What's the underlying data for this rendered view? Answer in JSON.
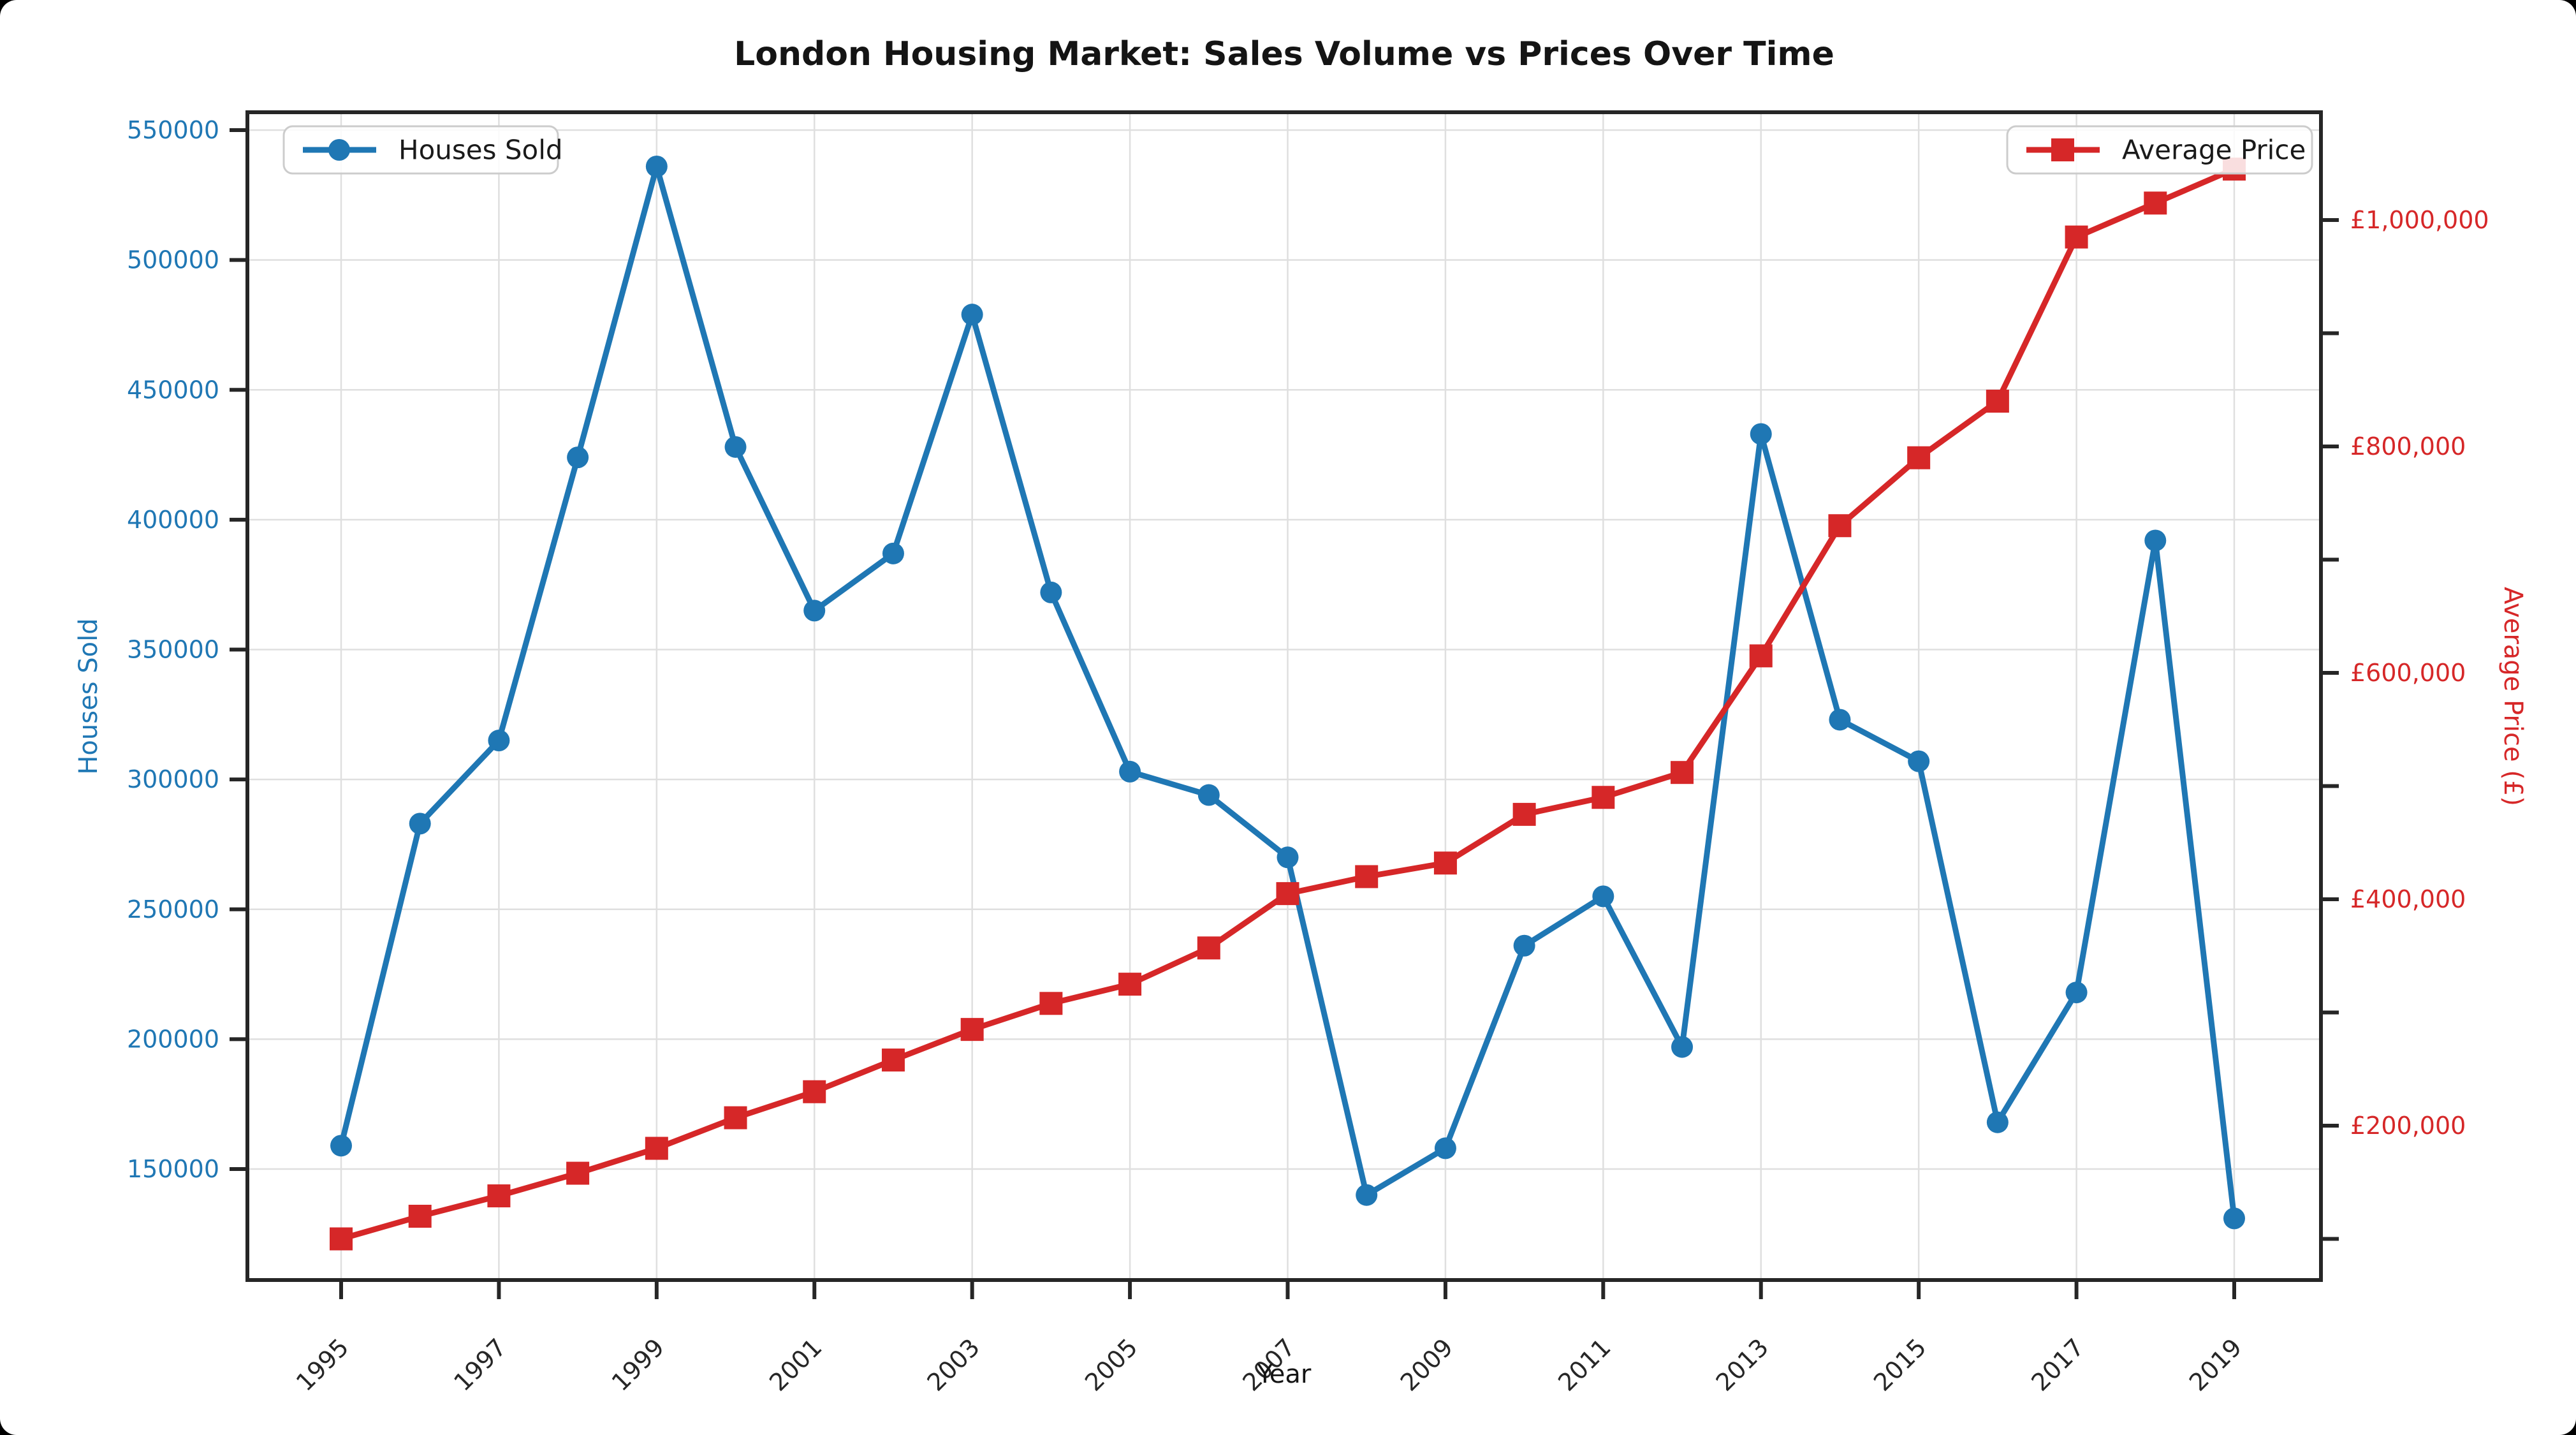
{
  "chart_data": {
    "type": "line",
    "title": "London Housing Market: Sales Volume vs Prices Over Time",
    "xlabel": "Year",
    "ylabel_left": "Houses Sold",
    "ylabel_right": "Average Price (£)",
    "grid": true,
    "x": [
      1995,
      1996,
      1997,
      1998,
      1999,
      2000,
      2001,
      2002,
      2003,
      2004,
      2005,
      2006,
      2007,
      2008,
      2009,
      2010,
      2011,
      2012,
      2013,
      2014,
      2015,
      2016,
      2017,
      2018,
      2019
    ],
    "series": [
      {
        "name": "Houses Sold",
        "axis": "left",
        "color": "#1f77b4",
        "marker": "circle",
        "values": [
          159000,
          283000,
          315000,
          424000,
          536000,
          428000,
          365000,
          387000,
          479000,
          372000,
          303000,
          294000,
          270000,
          140000,
          158000,
          236000,
          255000,
          197000,
          433000,
          323000,
          307000,
          168000,
          218000,
          392000,
          131000
        ]
      },
      {
        "name": "Average Price",
        "axis": "right",
        "color": "#d62728",
        "marker": "square",
        "values": [
          100000,
          120000,
          138000,
          158000,
          180000,
          207000,
          230000,
          258000,
          285000,
          308000,
          325000,
          357000,
          405000,
          420000,
          432000,
          475000,
          490000,
          512000,
          615000,
          730000,
          790000,
          840000,
          985000,
          1015000,
          1045000
        ]
      }
    ],
    "axes": {
      "x": {
        "tick_values": [
          1995,
          1997,
          1999,
          2001,
          2003,
          2005,
          2007,
          2009,
          2011,
          2013,
          2015,
          2017,
          2019
        ],
        "tick_labels": [
          "1995",
          "1997",
          "1999",
          "2001",
          "2003",
          "2005",
          "2007",
          "2009",
          "2011",
          "2013",
          "2015",
          "2017",
          "2019"
        ],
        "tick_rotation_deg": 45
      },
      "left": {
        "range": [
          113000,
          556900
        ],
        "tick_values": [
          150000,
          200000,
          250000,
          300000,
          350000,
          400000,
          450000,
          500000,
          550000
        ],
        "tick_labels": [
          "150000",
          "200000",
          "250000",
          "300000",
          "350000",
          "400000",
          "450000",
          "500000",
          "550000"
        ],
        "color": "#1f77b4"
      },
      "right": {
        "range": [
          67600,
          1095200
        ],
        "labeled_tick_values": [
          200000,
          400000,
          600000,
          800000,
          1000000
        ],
        "labeled_tick_labels": [
          "£200,000",
          "£400,000",
          "£600,000",
          "£800,000",
          "£1,000,000"
        ],
        "minor_tick_values": [
          100000,
          200000,
          300000,
          400000,
          500000,
          600000,
          700000,
          800000,
          900000,
          1000000
        ],
        "color": "#d62728"
      }
    },
    "legend": [
      {
        "label": "Houses Sold",
        "series": 0,
        "position": "upper-left"
      },
      {
        "label": "Average Price",
        "series": 1,
        "position": "upper-right"
      }
    ],
    "colors": {
      "houses_sold": "#1f77b4",
      "average_price": "#d62728",
      "grid": "#dfdfdf",
      "spine": "#262626",
      "legend_border": "#cccccc",
      "background": "#ffffff"
    }
  }
}
